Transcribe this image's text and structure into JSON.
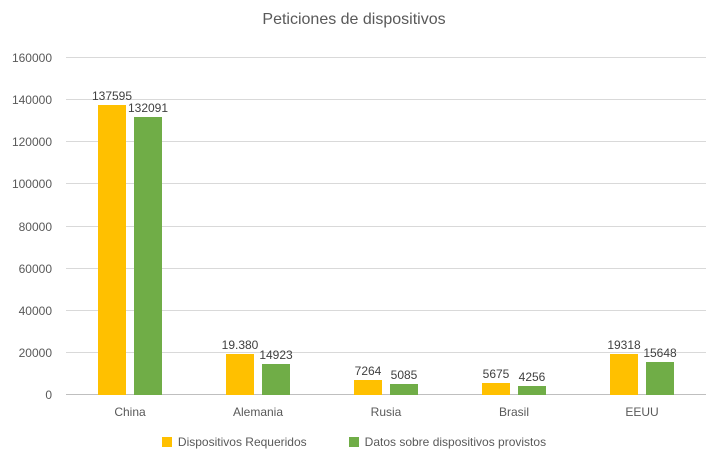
{
  "title": "Peticiones de dispositivos",
  "chart_data": {
    "type": "bar",
    "title": "Peticiones de dispositivos",
    "categories": [
      "China",
      "Alemania",
      "Rusia",
      "Brasil",
      "EEUU"
    ],
    "series": [
      {
        "name": "Dispositivos Requeridos",
        "color": "#FFC000",
        "values": [
          137595,
          19380,
          7264,
          5675,
          19318
        ],
        "labels": [
          "137595",
          "19.380",
          "7264",
          "5675",
          "19318"
        ]
      },
      {
        "name": "Datos sobre dispositivos provistos",
        "color": "#70AD47",
        "values": [
          132091,
          14923,
          5085,
          4256,
          15648
        ],
        "labels": [
          "132091",
          "14923",
          "5085",
          "4256",
          "15648"
        ]
      }
    ],
    "ylim": [
      0,
      160000
    ],
    "ytick_step": 20000,
    "yticks": [
      0,
      20000,
      40000,
      60000,
      80000,
      100000,
      120000,
      140000,
      160000
    ],
    "grid": true,
    "legend_position": "bottom"
  },
  "colors": {
    "background": "#FFFFFF",
    "title_text": "#595959",
    "axis_text": "#595959",
    "data_label_text": "#404040",
    "gridline": "#D9D9D9",
    "axis_line": "#BFBFBF"
  }
}
